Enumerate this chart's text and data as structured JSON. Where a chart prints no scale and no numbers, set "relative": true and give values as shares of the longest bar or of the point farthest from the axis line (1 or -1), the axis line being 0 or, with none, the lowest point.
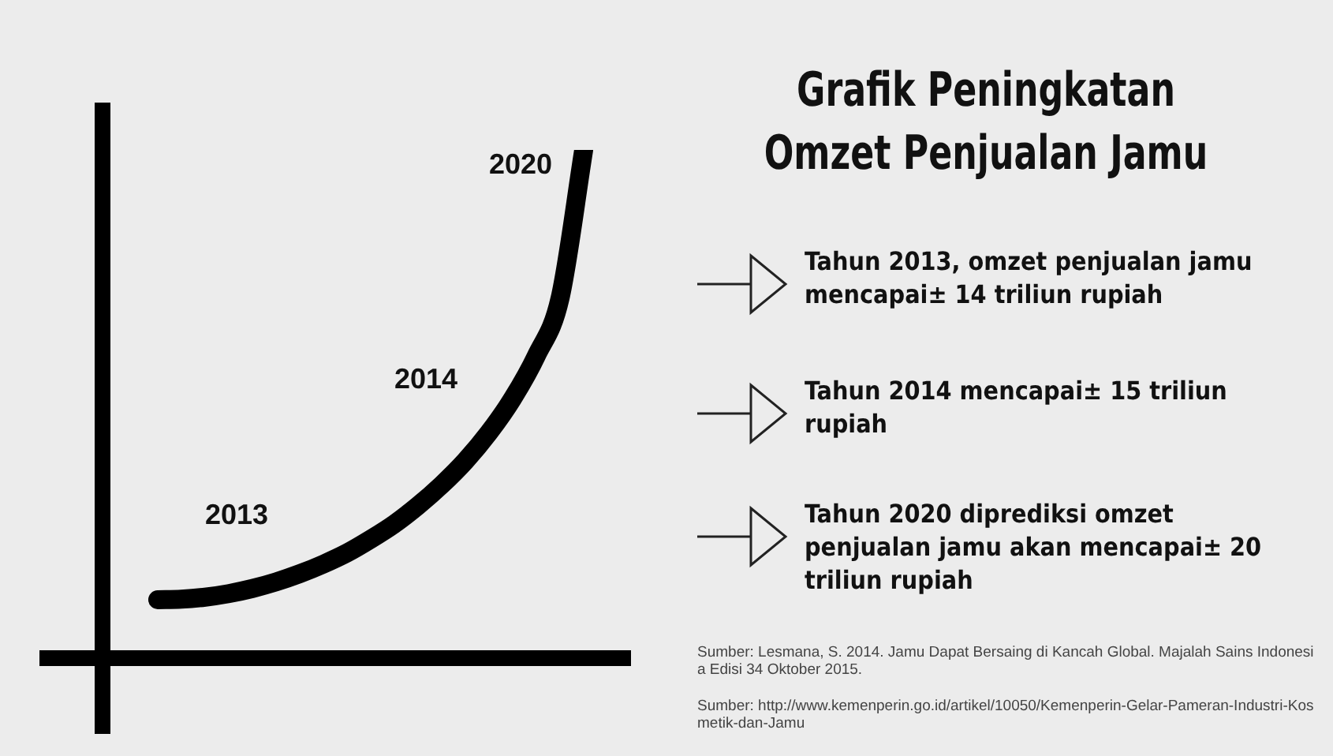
{
  "chart_data": {
    "type": "line",
    "title": "Grafik Peningkatan Omzet Penjualan Jamu",
    "relative": true,
    "marker": "none",
    "categories": [
      null,
      null,
      null,
      null,
      null,
      null,
      null,
      null,
      null,
      null,
      null,
      null,
      null,
      null,
      null,
      null,
      null,
      null,
      null
    ],
    "series": [
      {
        "color": "#000000",
        "values": [
          0.115,
          0.116,
          0.12,
          0.127,
          0.137,
          0.15,
          0.166,
          0.185,
          0.207,
          0.234,
          0.264,
          0.3,
          0.341,
          0.388,
          0.444,
          0.511,
          0.595,
          0.708,
          1.0
        ]
      }
    ],
    "annotations": [
      "2013",
      "2014",
      "2020",
      "Tahun 2013, omzet penjualan jamu mencapai± 14 triliun rupiah",
      "Tahun 2014 mencapai± 15 triliun rupiah",
      "Tahun 2020 diprediksi omzet penjualan jamu akan mencapai± 20 triliun rupiah",
      "Sumber: Lesmana, S. 2014. Jamu Dapat Bersaing di Kancah Global. Majalah Sains Indonesia Edisi 34 Oktober 2015.",
      "Sumber: http://www.kemenperin.go.id/artikel/10050/Kemenperin-Gelar-Pameran-Industri-Kosmetik-dan-Jamu"
    ]
  }
}
